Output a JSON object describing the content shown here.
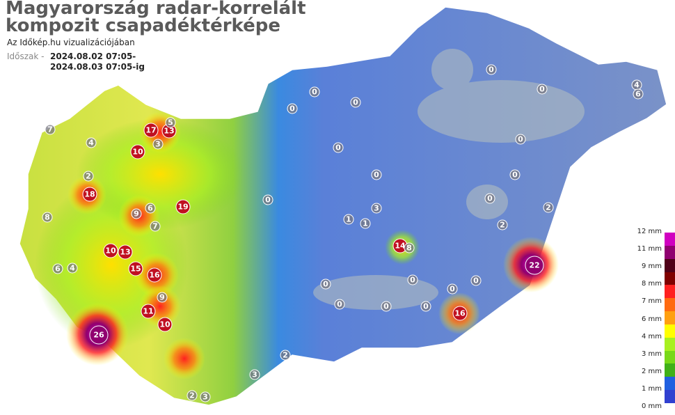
{
  "title_line1": "Magyarország radar-korrelált",
  "title_line2": "kompozit csapadéktérképe",
  "subtitle": "Az Időkép.hu vizualizációjában",
  "period_label": "Időszak -",
  "period_from": "2024.08.02 07:05-",
  "period_to": "2024.08.03 07:05-ig",
  "legend": {
    "labels": [
      "12 mm",
      "11 mm",
      "9 mm",
      "8 mm",
      "7 mm",
      "6 mm",
      "4 mm",
      "3 mm",
      "2 mm",
      "1 mm",
      "0 mm"
    ],
    "colors": [
      "#d000c0",
      "#900070",
      "#500018",
      "#800000",
      "#ff2020",
      "#ff6a10",
      "#ffa010",
      "#ffff00",
      "#a8f020",
      "#78d818",
      "#40b018",
      "#2060e0",
      "#3040d0"
    ]
  },
  "stations": [
    26,
    22,
    18,
    17,
    13,
    16,
    15,
    16,
    14,
    8,
    13,
    10,
    19,
    10,
    9,
    6,
    8,
    11,
    9,
    10,
    3,
    7,
    5,
    4,
    2,
    6,
    4,
    3,
    2,
    0,
    0,
    0,
    1,
    0,
    0,
    0,
    0,
    0,
    0,
    0,
    0,
    0,
    0,
    2,
    3,
    4,
    6,
    7,
    2,
    0,
    0,
    1,
    0,
    0,
    0,
    3,
    2
  ]
}
